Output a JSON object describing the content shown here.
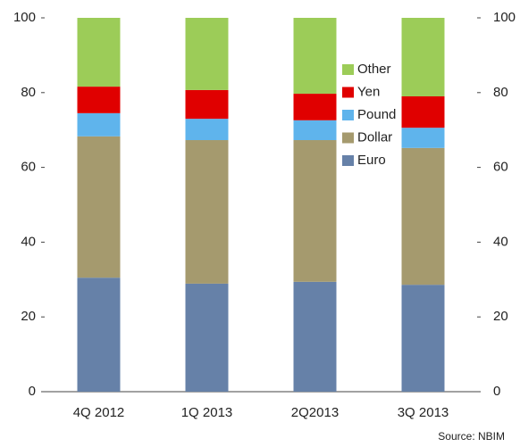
{
  "chart_data": {
    "type": "stacked_bar",
    "categories": [
      "4Q 2012",
      "1Q 2013",
      "2Q2013",
      "3Q 2013"
    ],
    "series": [
      {
        "name": "Euro",
        "color": "#6681a8",
        "values": [
          30.5,
          28.9,
          29.4,
          28.6
        ]
      },
      {
        "name": "Dollar",
        "color": "#a59a6e",
        "values": [
          37.8,
          38.4,
          37.9,
          36.6
        ]
      },
      {
        "name": "Pound",
        "color": "#5fb4ec",
        "values": [
          6.2,
          5.7,
          5.3,
          5.4
        ]
      },
      {
        "name": "Yen",
        "color": "#e00000",
        "values": [
          7.1,
          7.7,
          7.1,
          8.4
        ]
      },
      {
        "name": "Other",
        "color": "#9ccc58",
        "values": [
          18.4,
          19.3,
          20.3,
          21.0
        ]
      }
    ],
    "ylim": [
      0,
      100
    ],
    "yticks": [
      0,
      20,
      40,
      60,
      80,
      100
    ],
    "y2lim": [
      0,
      100
    ],
    "y2ticks": [
      0,
      20,
      40,
      60,
      80,
      100
    ],
    "source": "Source: NBIM"
  }
}
